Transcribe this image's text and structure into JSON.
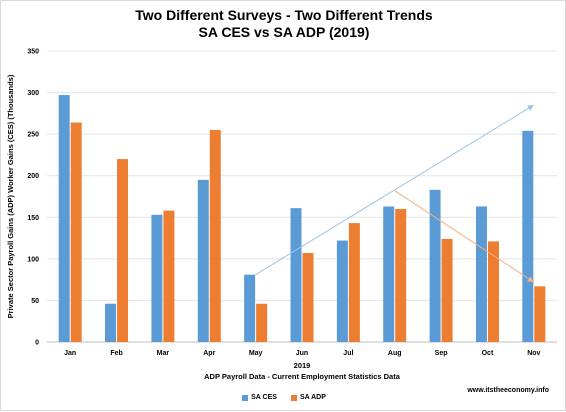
{
  "chart_data": {
    "type": "bar",
    "title": "Two Different Surveys - Two Different Trends",
    "subtitle": "SA CES vs SA ADP (2019)",
    "xlabel": "2019",
    "xlabel2": "ADP Payroll Data - Current Employment Statistics Data",
    "ylabel": "Private Sector Payroll Gains (ADP) Worker Gains (CES) (Thousands)",
    "ylim": [
      0,
      350
    ],
    "yticks": [
      0,
      50,
      100,
      150,
      200,
      250,
      300,
      350
    ],
    "grid": true,
    "legend_position": "bottom",
    "categories": [
      "Jan",
      "Feb",
      "Mar",
      "Apr",
      "May",
      "Jun",
      "Jul",
      "Aug",
      "Sep",
      "Oct",
      "Nov"
    ],
    "series": [
      {
        "name": "SA CES",
        "color": "#5b9bd5",
        "values": [
          297,
          46,
          153,
          195,
          81,
          161,
          122,
          163,
          183,
          163,
          254
        ]
      },
      {
        "name": "SA ADP",
        "color": "#ed7d31",
        "values": [
          264,
          220,
          158,
          255,
          46,
          107,
          143,
          160,
          124,
          121,
          67
        ]
      }
    ],
    "trendlines": [
      {
        "series": "SA CES",
        "color": "#9dc3e6",
        "from": {
          "x": "May",
          "y": 81
        },
        "to": {
          "x": "Nov",
          "y": 285
        }
      },
      {
        "series": "SA ADP",
        "color": "#f4b183",
        "from": {
          "x": "Aug",
          "y": 182
        },
        "to": {
          "x": "Nov",
          "y": 72
        }
      }
    ]
  },
  "credit": "www.itstheeconomy.info"
}
